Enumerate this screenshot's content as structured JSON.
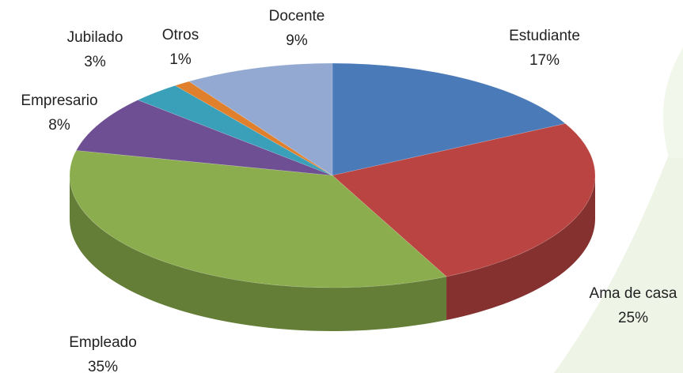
{
  "chart_data": {
    "type": "pie",
    "categories": [
      "Estudiante",
      "Ama de casa",
      "Empleado",
      "Empresario",
      "Jubilado",
      "Otros",
      "Docente"
    ],
    "values": [
      17,
      25,
      35,
      8,
      3,
      1,
      9
    ],
    "value_labels": [
      "17%",
      "25%",
      "35%",
      "8%",
      "3%",
      "1%",
      "9%"
    ],
    "colors": [
      "#4a7ab8",
      "#b94441",
      "#8bad4d",
      "#6e4f93",
      "#3a9fb8",
      "#e07f2c",
      "#94a9d1"
    ]
  }
}
